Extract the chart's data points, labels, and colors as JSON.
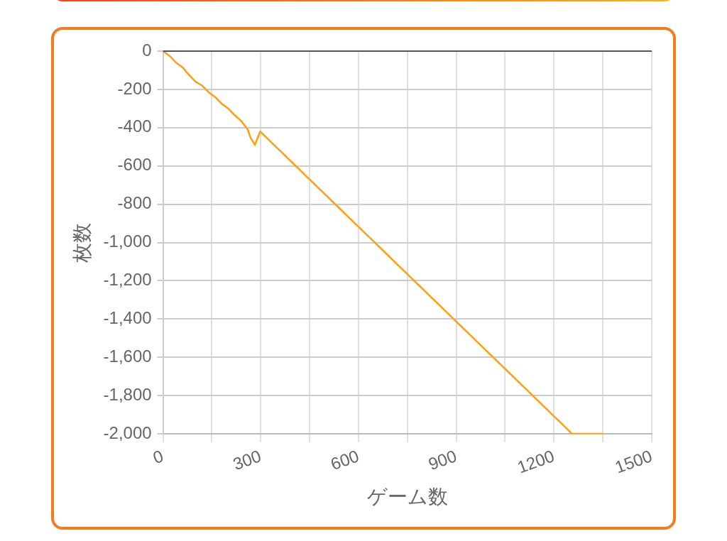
{
  "chart_data": {
    "type": "line",
    "xlabel": "ゲーム数",
    "ylabel": "枚数",
    "x": [
      0,
      20,
      40,
      60,
      80,
      100,
      120,
      140,
      160,
      180,
      200,
      220,
      240,
      260,
      268,
      282,
      298,
      320,
      340,
      360,
      380,
      400,
      420,
      440,
      460,
      480,
      500,
      520,
      540,
      560,
      580,
      600,
      620,
      640,
      660,
      680,
      700,
      720,
      740,
      760,
      780,
      800,
      820,
      840,
      860,
      880,
      900,
      920,
      940,
      960,
      980,
      1000,
      1020,
      1040,
      1060,
      1080,
      1100,
      1120,
      1140,
      1160,
      1180,
      1200,
      1220,
      1240,
      1255,
      1350
    ],
    "series": [
      {
        "color": "#ff9f0f",
        "values": [
          0,
          -25,
          -60,
          -85,
          -125,
          -160,
          -180,
          -215,
          -240,
          -275,
          -300,
          -335,
          -365,
          -410,
          -450,
          -490,
          -420,
          -456,
          -489,
          -522,
          -555,
          -588,
          -621,
          -654,
          -687,
          -720,
          -753,
          -786,
          -819,
          -852,
          -885,
          -918,
          -951,
          -984,
          -1017,
          -1050,
          -1083,
          -1116,
          -1149,
          -1182,
          -1215,
          -1248,
          -1281,
          -1314,
          -1347,
          -1380,
          -1413,
          -1446,
          -1479,
          -1512,
          -1545,
          -1578,
          -1611,
          -1644,
          -1677,
          -1710,
          -1743,
          -1776,
          -1809,
          -1842,
          -1875,
          -1908,
          -1941,
          -1974,
          -2000,
          -2000
        ]
      }
    ],
    "xlim": [
      0,
      1500
    ],
    "xticks": [
      0,
      {
        "value": 150,
        "label": null
      },
      300,
      {
        "value": 450,
        "label": null
      },
      600,
      {
        "value": 750,
        "label": null
      },
      900,
      {
        "value": 1050,
        "label": null
      },
      1200,
      {
        "value": 1350,
        "label": null
      },
      1500
    ],
    "ylim": [
      -2000,
      0
    ],
    "yticks": [
      {
        "value": -2000,
        "label": "-2,000"
      },
      {
        "value": -1800,
        "label": "-1,800"
      },
      {
        "value": -1600,
        "label": "-1,600"
      },
      {
        "value": -1400,
        "label": "-1,400"
      },
      {
        "value": -1200,
        "label": "-1,200"
      },
      {
        "value": -1000,
        "label": "-1,000"
      },
      -800,
      -600,
      -400,
      -200,
      0
    ],
    "ref_lines": [
      {
        "axis": "y",
        "value": 0,
        "color": "#555555"
      }
    ],
    "grid": true,
    "marker": "none",
    "line_style": "solid",
    "legend": false
  }
}
